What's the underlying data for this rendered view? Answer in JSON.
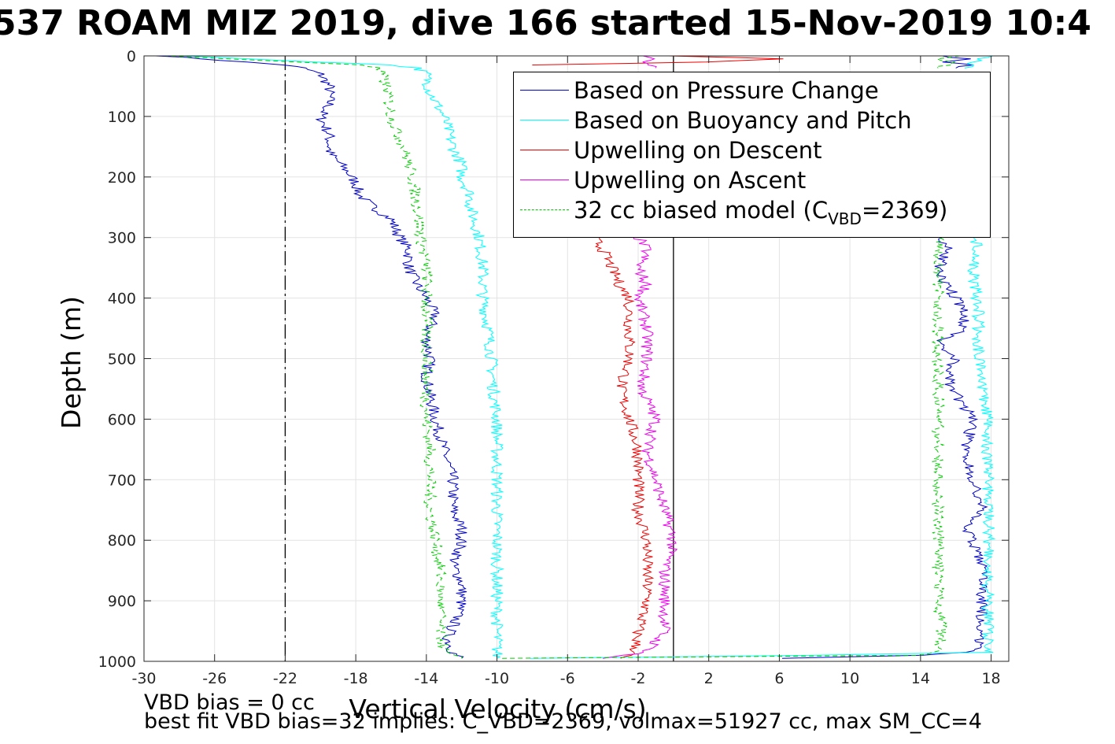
{
  "title": "537 ROAM MIZ 2019, dive 166 started 15-Nov-2019 10:4",
  "footer": {
    "line1": "VBD bias = 0 cc",
    "line2": "best fit VBD bias=32 implies: C_VBD=2369, volmax=51927 cc, max SM_CC=4"
  },
  "chart_data": {
    "type": "line",
    "xlabel": "Vertical Velocity (cm/s)",
    "ylabel": "Depth (m)",
    "xlim": [
      -30,
      19
    ],
    "ylim": [
      0,
      1000
    ],
    "y_reversed": true,
    "xticks": [
      -30,
      -26,
      -22,
      -18,
      -14,
      -10,
      -6,
      -2,
      2,
      6,
      10,
      14,
      18
    ],
    "yticks": [
      0,
      100,
      200,
      300,
      400,
      500,
      600,
      700,
      800,
      900,
      1000
    ],
    "grid": true,
    "legend_position": "top-right",
    "reference_lines": [
      {
        "x": -22,
        "style": "dash-dot",
        "color": "#000000"
      },
      {
        "x": 0,
        "style": "solid",
        "color": "#000000"
      }
    ],
    "series": [
      {
        "name": "Based on Pressure Change",
        "color": "#0000cc",
        "style": "solid",
        "segments": [
          {
            "depth": [
              0,
              15,
              20,
              30,
              50,
              80,
              100,
              130,
              160,
              190,
              210,
              230,
              250,
              270,
              300,
              320,
              350,
              380,
              400,
              430,
              460,
              500,
              530,
              560,
              600,
              650,
              700,
              750,
              780,
              800,
              820,
              840,
              870,
              900,
              930,
              960,
              985,
              995
            ],
            "value": [
              -29,
              -22,
              -21,
              -20,
              -19.5,
              -19.5,
              -20,
              -19.5,
              -19.5,
              -18.5,
              -18,
              -17.8,
              -17,
              -16,
              -15.5,
              -15,
              -15,
              -14.5,
              -14,
              -13.5,
              -14,
              -13.8,
              -14,
              -13.8,
              -13.5,
              -13,
              -12.5,
              -12.5,
              -12,
              -12,
              -12.2,
              -12.5,
              -12,
              -12,
              -12.3,
              -12.8,
              -12.5,
              -12
            ]
          },
          {
            "depth": [
              995,
              990,
              985,
              975,
              950,
              900,
              850,
              800,
              780,
              750,
              700,
              650,
              600,
              560,
              530,
              500,
              470,
              450,
              420,
              400,
              380,
              350,
              320,
              300
            ],
            "value": [
              6,
              14,
              16.5,
              17.3,
              17.5,
              17.5,
              17.5,
              17,
              16.5,
              17.5,
              17,
              16.5,
              17,
              16,
              15.5,
              16,
              15,
              16.5,
              16.5,
              16,
              15.5,
              15,
              15.5,
              15.2
            ]
          },
          {
            "depth": [
              0,
              5,
              10,
              15,
              20
            ],
            "value": [
              15,
              16.5,
              15.5,
              17,
              16
            ]
          }
        ]
      },
      {
        "name": "Based on Buoyancy and Pitch",
        "color": "#00ffff",
        "style": "solid",
        "segments": [
          {
            "depth": [
              0,
              15,
              20,
              30,
              60,
              100,
              150,
              180,
              200,
              230,
              250,
              300,
              350,
              400,
              450,
              500,
              550,
              600,
              650,
              700,
              750,
              800,
              850,
              900,
              950,
              985,
              995
            ],
            "value": [
              -28,
              -16,
              -14.5,
              -14,
              -13.8,
              -13,
              -12.5,
              -12,
              -12,
              -11.5,
              -11.5,
              -11,
              -10.8,
              -10.8,
              -10.5,
              -10.3,
              -10.2,
              -10,
              -10,
              -10,
              -10,
              -10,
              -10,
              -10,
              -10,
              -10,
              -10
            ]
          },
          {
            "depth": [
              995,
              990,
              985,
              950,
              900,
              850,
              800,
              750,
              700,
              650,
              600,
              550,
              500,
              450,
              400,
              350,
              315,
              300
            ],
            "value": [
              -8,
              8,
              18,
              17.8,
              17.8,
              17.8,
              17.9,
              17.8,
              17.8,
              17.8,
              17.8,
              17.5,
              17.3,
              17.3,
              17.2,
              17,
              17.2,
              17
            ]
          },
          {
            "depth": [
              0,
              5,
              10,
              15,
              20
            ],
            "value": [
              18,
              17.5,
              16.8,
              16.8,
              16.5
            ]
          }
        ]
      },
      {
        "name": "Upwelling on Descent",
        "color": "#ee0000",
        "style": "solid",
        "segments": [
          {
            "depth": [
              0,
              5,
              10,
              15
            ],
            "value": [
              0,
              6,
              2,
              -8
            ]
          },
          {
            "depth": [
              300,
              320,
              350,
              380,
              400,
              450,
              500,
              550,
              600,
              650,
              700,
              750,
              800,
              850,
              900,
              950,
              985,
              995
            ],
            "value": [
              -4.5,
              -4,
              -3.5,
              -3,
              -2.5,
              -2.5,
              -2.5,
              -3,
              -2.5,
              -2,
              -2,
              -2,
              -1.5,
              -1.5,
              -1.5,
              -2,
              -2.2,
              -3
            ]
          }
        ]
      },
      {
        "name": "Upwelling on Ascent",
        "color": "#ee00ee",
        "style": "solid",
        "segments": [
          {
            "depth": [
              0,
              5,
              10,
              15,
              20
            ],
            "value": [
              -2,
              -1,
              -2,
              -1.5,
              -1
            ]
          },
          {
            "depth": [
              300,
              320,
              350,
              380,
              400,
              450,
              500,
              550,
              600,
              650,
              700,
              750,
              800,
              850,
              900,
              950,
              985,
              995
            ],
            "value": [
              -2,
              -1.5,
              -2,
              -1.5,
              -2,
              -1.5,
              -1.5,
              -1.8,
              -1,
              -1.5,
              -1,
              -0.5,
              0,
              -0.5,
              -0.5,
              -0.5,
              -1.5,
              -4
            ]
          }
        ]
      },
      {
        "name": "32 cc biased model (C<sub>VBD</sub>=2369)",
        "color": "#00cc00",
        "style": "dashed",
        "segments": [
          {
            "depth": [
              0,
              15,
              20,
              30,
              60,
              100,
              150,
              200,
              250,
              300,
              350,
              400,
              450,
              500,
              550,
              600,
              650,
              700,
              750,
              800,
              850,
              900,
              950,
              985,
              995
            ],
            "value": [
              -29,
              -17.5,
              -16.8,
              -16.5,
              -16.2,
              -16,
              -15.3,
              -14.8,
              -14.5,
              -14.3,
              -14,
              -14,
              -14,
              -14,
              -14,
              -14,
              -13.8,
              -13.8,
              -13.8,
              -13.5,
              -13.2,
              -13.2,
              -13.2,
              -13,
              -12
            ]
          },
          {
            "depth": [
              995,
              990,
              985,
              950,
              900,
              850,
              800,
              750,
              700,
              650,
              600,
              550,
              500,
              450,
              400,
              350,
              300
            ],
            "value": [
              -10,
              14,
              15,
              15.2,
              15,
              15,
              15,
              15,
              15,
              15,
              15,
              15,
              15,
              15,
              15,
              15,
              15
            ]
          },
          {
            "depth": [
              0,
              5,
              10,
              15,
              20
            ],
            "value": [
              16,
              15,
              16,
              15.5,
              15
            ]
          }
        ]
      }
    ]
  }
}
